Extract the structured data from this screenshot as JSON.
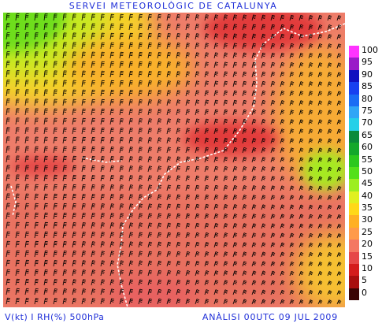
{
  "header": {
    "title": "SERVEI METEOROLÒGIC DE CATALUNYA"
  },
  "footer": {
    "left": "V(kt) I RH(%) 500hPa",
    "right": "ANÀLISI 00UTC 09 JUL 2009"
  },
  "legend": {
    "items": [
      {
        "label": "100",
        "color": "#ff33ff"
      },
      {
        "label": "95",
        "color": "#9a1bc8"
      },
      {
        "label": "90",
        "color": "#1010c0"
      },
      {
        "label": "85",
        "color": "#1840f0"
      },
      {
        "label": "80",
        "color": "#1a6cf4"
      },
      {
        "label": "75",
        "color": "#30a6f6"
      },
      {
        "label": "70",
        "color": "#26d0e8"
      },
      {
        "label": "65",
        "color": "#0a8a3a"
      },
      {
        "label": "60",
        "color": "#13a82c"
      },
      {
        "label": "55",
        "color": "#2cc81e"
      },
      {
        "label": "50",
        "color": "#54e01a"
      },
      {
        "label": "45",
        "color": "#9cee20"
      },
      {
        "label": "40",
        "color": "#e0f020"
      },
      {
        "label": "35",
        "color": "#ffd818"
      },
      {
        "label": "30",
        "color": "#ffb024"
      },
      {
        "label": "25",
        "color": "#ff9a4a"
      },
      {
        "label": "20",
        "color": "#f47862"
      },
      {
        "label": "15",
        "color": "#e64848"
      },
      {
        "label": "10",
        "color": "#d41c1c"
      },
      {
        "label": "5",
        "color": "#a80e0e"
      },
      {
        "label": "0",
        "color": "#3a0404"
      }
    ]
  }
}
